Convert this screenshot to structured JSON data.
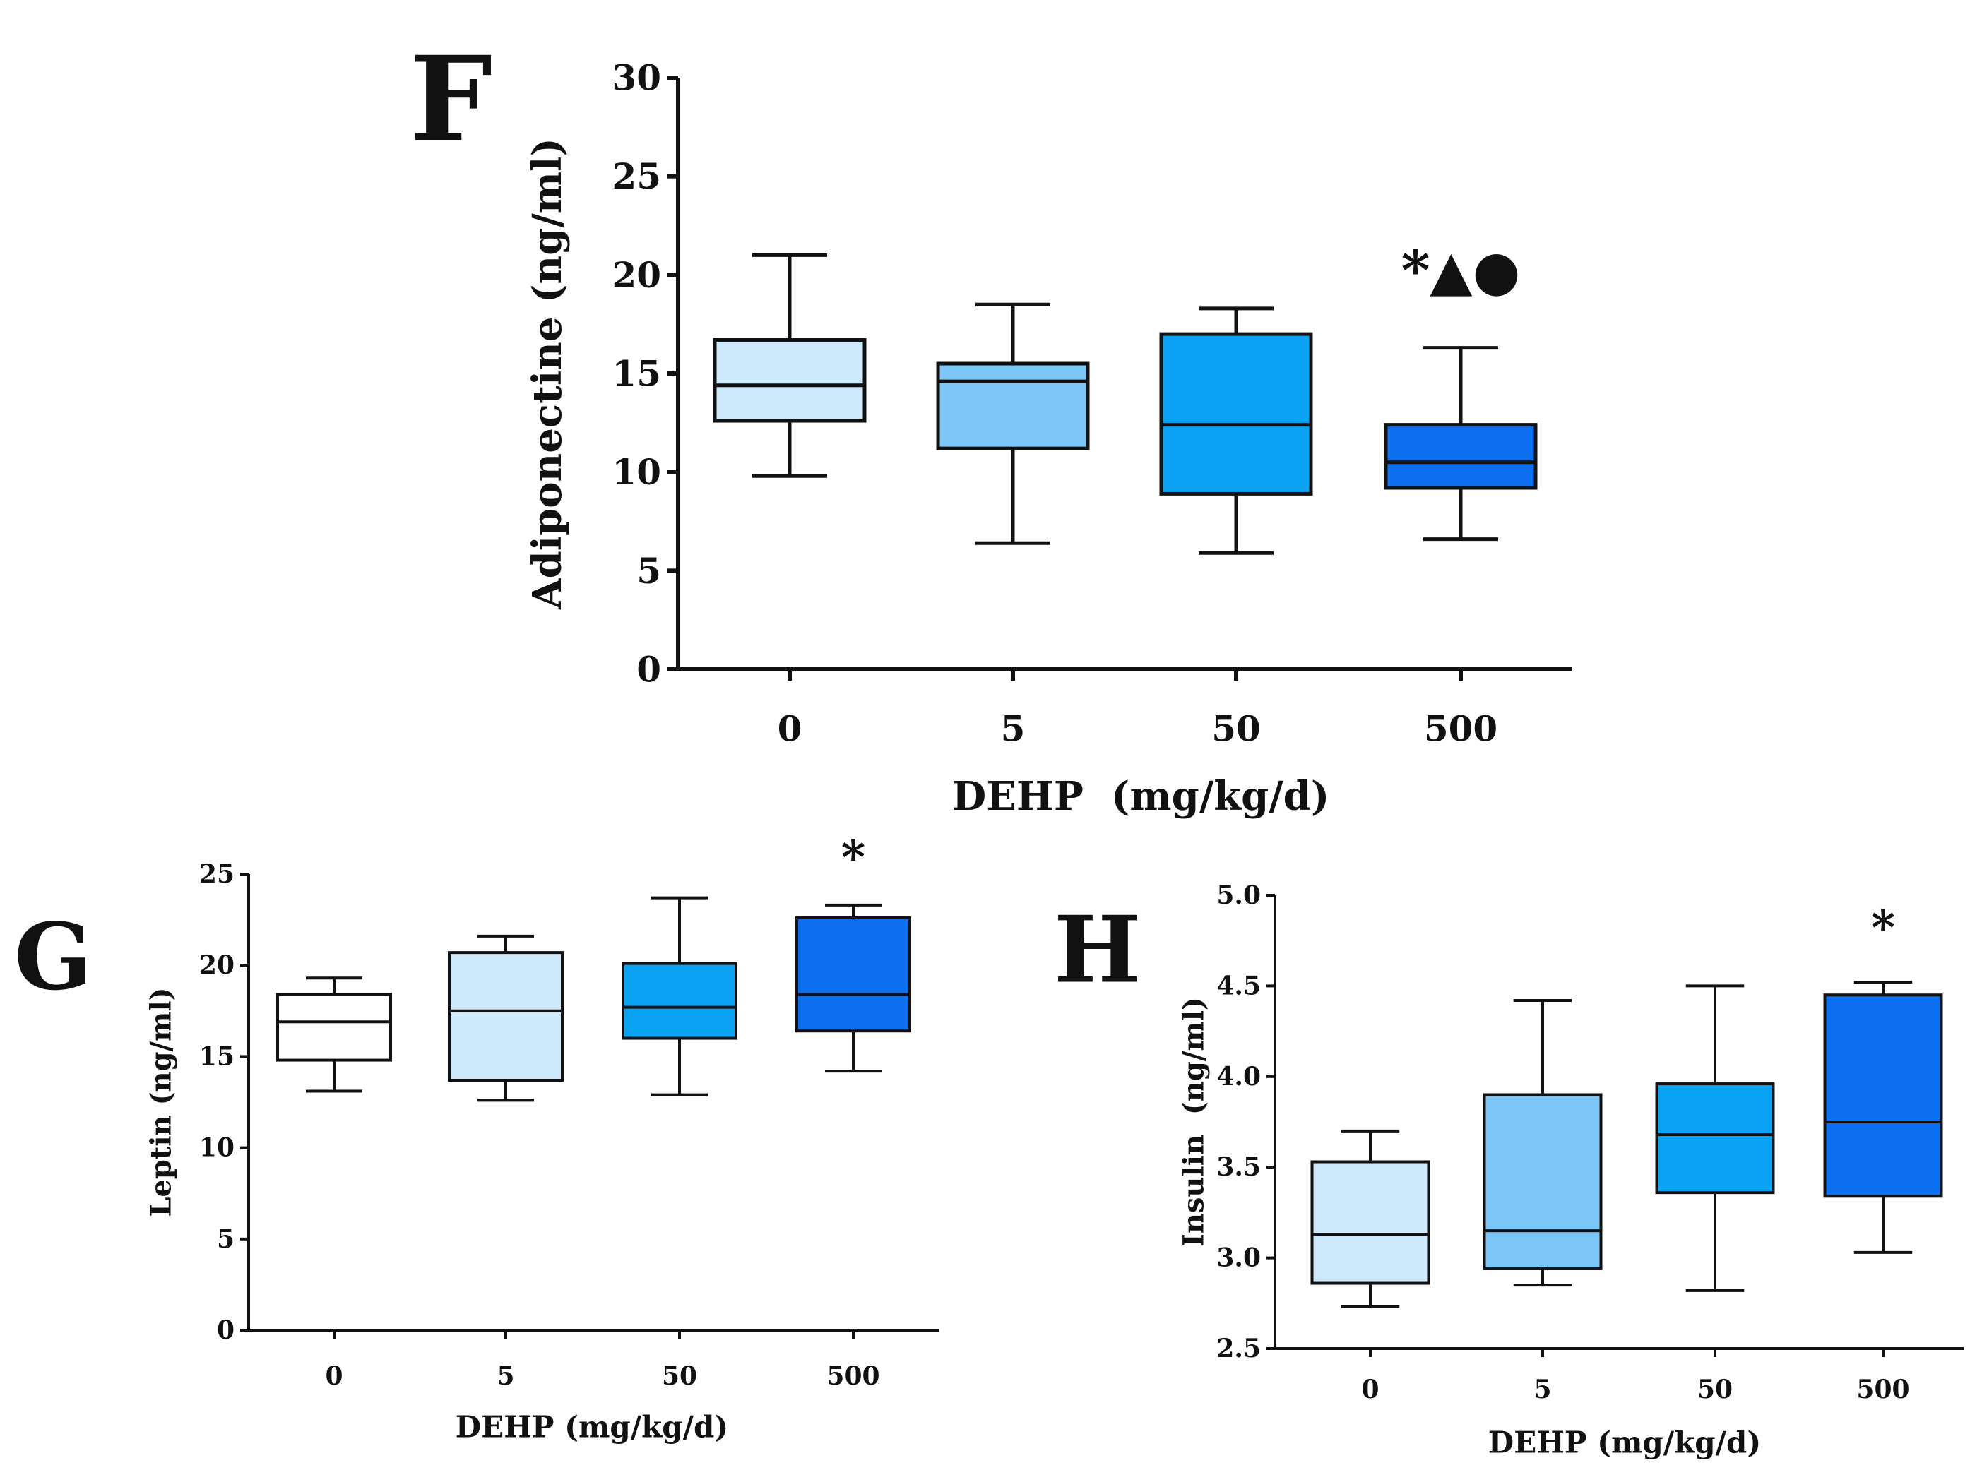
{
  "chart_data": [
    {
      "panel_label": "F",
      "type": "box",
      "title": "",
      "xlabel": "DEHP  (mg/kg/d)",
      "ylabel": "Adiponectine (ng/ml)",
      "ylim": [
        0,
        30
      ],
      "yticks": [
        0,
        5,
        10,
        15,
        20,
        25,
        30
      ],
      "ytick_labels": [
        "0",
        "5",
        "10",
        "15",
        "20",
        "25",
        "30"
      ],
      "categories": [
        "0",
        "5",
        "50",
        "500"
      ],
      "boxes": [
        {
          "min": 9.8,
          "q1": 12.6,
          "median": 14.4,
          "q3": 16.7,
          "max": 21.0,
          "color": "#cde9fb"
        },
        {
          "min": 6.4,
          "q1": 11.2,
          "median": 14.6,
          "q3": 15.5,
          "max": 18.5,
          "color": "#7cc6f7"
        },
        {
          "min": 5.9,
          "q1": 8.9,
          "median": 12.4,
          "q3": 17.0,
          "max": 18.3,
          "color": "#0aa2f2"
        },
        {
          "min": 6.6,
          "q1": 9.2,
          "median": 10.5,
          "q3": 12.4,
          "max": 16.3,
          "color": "#0b6ff0"
        }
      ],
      "annotations": [
        {
          "category_index": 3,
          "text": "*▲●",
          "y": 20.2
        }
      ]
    },
    {
      "panel_label": "G",
      "type": "box",
      "title": "",
      "xlabel": "DEHP (mg/kg/d)",
      "ylabel": "Leptin (ng/ml)",
      "ylim": [
        0,
        25
      ],
      "yticks": [
        0,
        5,
        10,
        15,
        20,
        25
      ],
      "ytick_labels": [
        "0",
        "5",
        "10",
        "15",
        "20",
        "25"
      ],
      "categories": [
        "0",
        "5",
        "50",
        "500"
      ],
      "boxes": [
        {
          "min": 13.1,
          "q1": 14.8,
          "median": 16.9,
          "q3": 18.4,
          "max": 19.3,
          "color": "#ffffff"
        },
        {
          "min": 12.6,
          "q1": 13.7,
          "median": 17.5,
          "q3": 20.7,
          "max": 21.6,
          "color": "#cde9fb"
        },
        {
          "min": 12.9,
          "q1": 16.0,
          "median": 17.7,
          "q3": 20.1,
          "max": 23.7,
          "color": "#0aa2f2"
        },
        {
          "min": 14.2,
          "q1": 16.4,
          "median": 18.4,
          "q3": 22.6,
          "max": 23.3,
          "color": "#0b6ff0"
        }
      ],
      "annotations": [
        {
          "category_index": 3,
          "text": "*",
          "y": 25.9
        }
      ]
    },
    {
      "panel_label": "H",
      "type": "box",
      "title": "",
      "xlabel": "DEHP (mg/kg/d)",
      "ylabel": "Insulin  (ng/ml)",
      "ylim": [
        2.5,
        5.0
      ],
      "yticks": [
        2.5,
        3.0,
        3.5,
        4.0,
        4.5,
        5.0
      ],
      "ytick_labels": [
        "2.5",
        "3.0",
        "3.5",
        "4.0",
        "4.5",
        "5.0"
      ],
      "categories": [
        "0",
        "5",
        "50",
        "500"
      ],
      "boxes": [
        {
          "min": 2.73,
          "q1": 2.86,
          "median": 3.13,
          "q3": 3.53,
          "max": 3.7,
          "color": "#cde9fb"
        },
        {
          "min": 2.85,
          "q1": 2.94,
          "median": 3.15,
          "q3": 3.9,
          "max": 4.42,
          "color": "#7cc6f7"
        },
        {
          "min": 2.82,
          "q1": 3.36,
          "median": 3.68,
          "q3": 3.96,
          "max": 4.5,
          "color": "#0aa2f2"
        },
        {
          "min": 3.03,
          "q1": 3.34,
          "median": 3.75,
          "q3": 4.45,
          "max": 4.52,
          "color": "#0b6ff0"
        }
      ],
      "annotations": [
        {
          "category_index": 3,
          "text": "*",
          "y": 4.82
        }
      ]
    }
  ]
}
